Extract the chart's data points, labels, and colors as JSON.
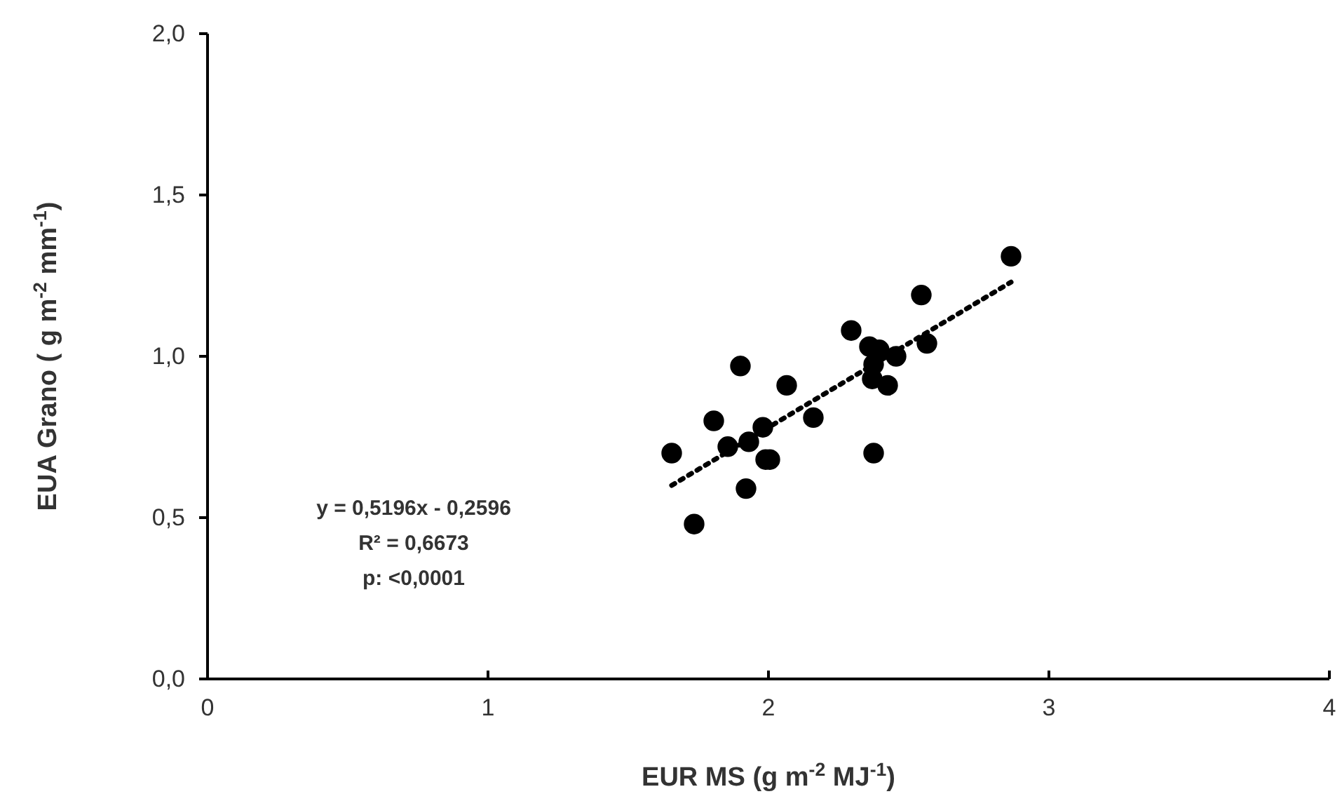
{
  "chart_data": {
    "type": "scatter",
    "xlabel": "EUR MS (g m$^{-2}$ MJ$^{-1}$)",
    "ylabel": "EUA Grano ( g m$^{-2}$ mm$^{-1}$)",
    "xlim": [
      0,
      4
    ],
    "xticks": [
      0,
      1,
      2,
      3,
      4
    ],
    "ylim": [
      0,
      2
    ],
    "yticks": [
      {
        "value": 0,
        "label": "0,0"
      },
      {
        "value": 0.5,
        "label": "0,5"
      },
      {
        "value": 1,
        "label": "1,0"
      },
      {
        "value": 1.5,
        "label": "1,5"
      },
      {
        "value": 2,
        "label": "2,0"
      }
    ],
    "grid": false,
    "series": [
      {
        "color": "#000000",
        "marker": "circle",
        "x": [
          1.655,
          1.735,
          1.805,
          1.855,
          1.9,
          1.92,
          1.93,
          1.98,
          1.99,
          2.005,
          2.065,
          2.16,
          2.295,
          2.36,
          2.395,
          2.375,
          2.37,
          2.425,
          2.455,
          2.375,
          2.545,
          2.565,
          2.865
        ],
        "values": [
          0.7,
          0.48,
          0.8,
          0.72,
          0.97,
          0.59,
          0.735,
          0.78,
          0.68,
          0.68,
          0.91,
          0.81,
          1.08,
          1.03,
          1.02,
          0.975,
          0.93,
          0.91,
          1.0,
          0.7,
          1.19,
          1.04,
          1.31
        ]
      },
      {
        "type": "line",
        "color": "#000000",
        "line_style": "dotted",
        "x": [
          1.655,
          2.865
        ],
        "values": [
          0.6,
          1.23
        ]
      }
    ],
    "annotations": [
      "y = 0,5196x - 0,2596",
      "R² = 0,6673",
      "p: <0,0001"
    ]
  }
}
